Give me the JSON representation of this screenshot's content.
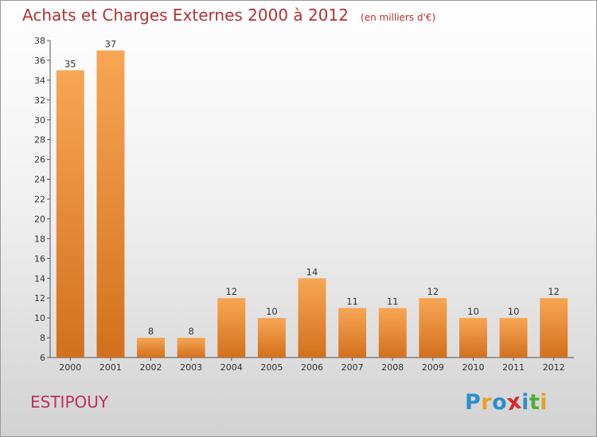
{
  "chart_data": {
    "type": "bar",
    "title": "Achats et Charges Externes 2000 à 2012",
    "unit": "(en milliers d'€)",
    "categories": [
      "2000",
      "2001",
      "2002",
      "2003",
      "2004",
      "2005",
      "2006",
      "2007",
      "2008",
      "2009",
      "2010",
      "2011",
      "2012"
    ],
    "values": [
      35,
      37,
      8,
      8,
      12,
      10,
      14,
      11,
      11,
      12,
      10,
      10,
      12
    ],
    "ylim": [
      6,
      38
    ],
    "yticks": [
      6,
      8,
      10,
      12,
      14,
      16,
      18,
      20,
      22,
      24,
      26,
      28,
      30,
      32,
      34,
      36,
      38
    ],
    "grid": false,
    "bar_color_top": "#f7a654",
    "bar_color_bottom": "#d2701c"
  },
  "footer": {
    "commune": "ESTIPOUY",
    "brand_letters": [
      {
        "char": "P",
        "color": "#2a8fcc"
      },
      {
        "char": "r",
        "color": "#e8a01e"
      },
      {
        "char": "o",
        "color": "#2a8fcc"
      },
      {
        "char": "x",
        "color": "#d4282a"
      },
      {
        "char": "i",
        "color": "#2a8fcc"
      },
      {
        "char": "t",
        "color": "#4fae32"
      },
      {
        "char": "i",
        "color": "#e8a01e"
      }
    ]
  }
}
